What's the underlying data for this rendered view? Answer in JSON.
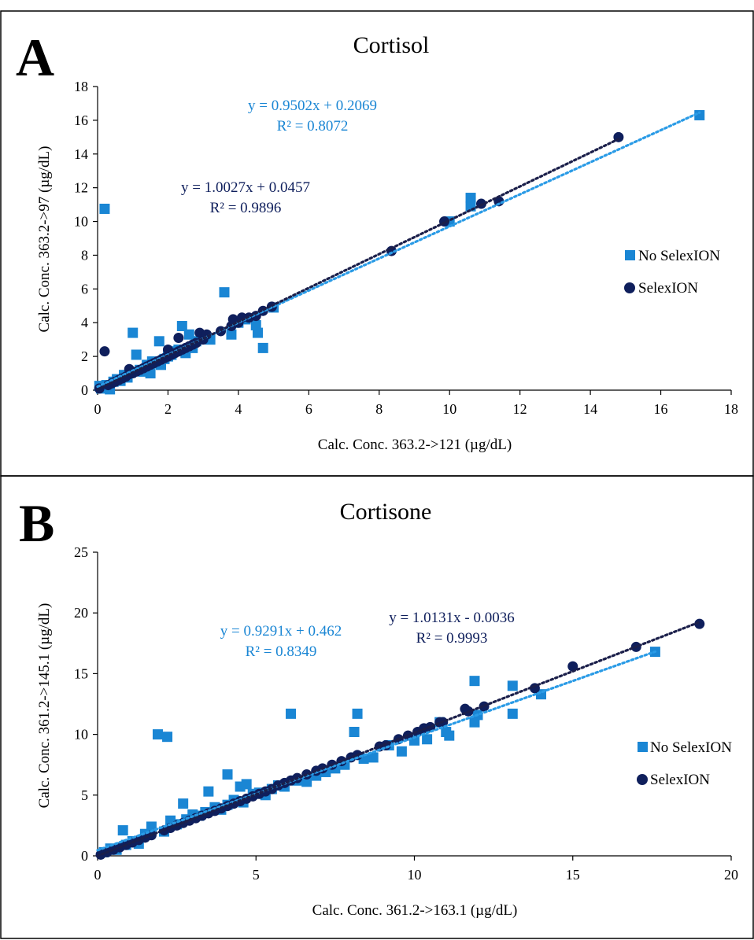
{
  "chart_data": [
    {
      "type": "scatter",
      "panel_label": "A",
      "title": "Cortisol",
      "xlabel": "Calc. Conc. 363.2->121 (µg/dL)",
      "ylabel": "Calc. Conc. 363.2->97 (µg/dL)",
      "xlim": [
        0,
        18
      ],
      "ylim": [
        0,
        18
      ],
      "xticks": [
        0,
        2,
        4,
        6,
        8,
        10,
        12,
        14,
        16,
        18
      ],
      "yticks": [
        0,
        2,
        4,
        6,
        8,
        10,
        12,
        14,
        16,
        18
      ],
      "grid": false,
      "legend_placement": "right",
      "series": [
        {
          "name": "No SelexION",
          "marker": "square",
          "color": "#1a86d4",
          "trendline": {
            "slope": 0.9502,
            "intercept": 0.2069,
            "equation": "y = 0.9502x + 0.2069",
            "r2": "R² = 0.8072"
          },
          "points": [
            [
              0.05,
              0.25
            ],
            [
              0.1,
              0.1
            ],
            [
              0.2,
              10.75
            ],
            [
              0.25,
              0.3
            ],
            [
              0.35,
              0.05
            ],
            [
              0.45,
              0.5
            ],
            [
              0.55,
              0.65
            ],
            [
              0.65,
              0.55
            ],
            [
              0.75,
              0.9
            ],
            [
              0.85,
              0.75
            ],
            [
              0.95,
              1.05
            ],
            [
              1.0,
              3.4
            ],
            [
              1.1,
              2.1
            ],
            [
              1.2,
              1.2
            ],
            [
              1.3,
              1.1
            ],
            [
              1.4,
              1.5
            ],
            [
              1.5,
              1.0
            ],
            [
              1.55,
              1.7
            ],
            [
              1.65,
              1.6
            ],
            [
              1.75,
              2.9
            ],
            [
              1.8,
              1.5
            ],
            [
              1.9,
              1.85
            ],
            [
              2.0,
              2.0
            ],
            [
              2.1,
              2.1
            ],
            [
              2.2,
              2.3
            ],
            [
              2.3,
              2.4
            ],
            [
              2.4,
              3.8
            ],
            [
              2.5,
              2.2
            ],
            [
              2.6,
              3.3
            ],
            [
              2.7,
              2.5
            ],
            [
              2.8,
              2.9
            ],
            [
              3.0,
              3.1
            ],
            [
              3.2,
              3.0
            ],
            [
              3.6,
              5.8
            ],
            [
              3.8,
              3.3
            ],
            [
              4.0,
              4.0
            ],
            [
              4.2,
              4.2
            ],
            [
              4.5,
              3.85
            ],
            [
              4.55,
              3.4
            ],
            [
              4.7,
              2.5
            ],
            [
              5.0,
              4.9
            ],
            [
              10.0,
              10.0
            ],
            [
              10.6,
              10.9
            ],
            [
              10.6,
              11.4
            ],
            [
              17.1,
              16.3
            ]
          ]
        },
        {
          "name": "SelexION",
          "marker": "circle",
          "color": "#0f1f5c",
          "trendline": {
            "slope": 1.0027,
            "intercept": 0.0457,
            "equation": "y = 1.0027x + 0.0457",
            "r2": "R² = 0.9896"
          },
          "points": [
            [
              0.05,
              0.1
            ],
            [
              0.2,
              2.3
            ],
            [
              0.3,
              0.3
            ],
            [
              0.4,
              0.4
            ],
            [
              0.5,
              0.5
            ],
            [
              0.6,
              0.6
            ],
            [
              0.7,
              0.7
            ],
            [
              0.8,
              0.8
            ],
            [
              0.9,
              0.95
            ],
            [
              0.9,
              1.25
            ],
            [
              1.0,
              1.0
            ],
            [
              1.1,
              1.1
            ],
            [
              1.2,
              1.2
            ],
            [
              1.3,
              1.3
            ],
            [
              1.4,
              1.4
            ],
            [
              1.5,
              1.5
            ],
            [
              1.6,
              1.6
            ],
            [
              1.7,
              1.7
            ],
            [
              1.8,
              1.8
            ],
            [
              1.9,
              1.9
            ],
            [
              2.0,
              2.0
            ],
            [
              2.0,
              2.4
            ],
            [
              2.1,
              2.1
            ],
            [
              2.2,
              2.2
            ],
            [
              2.3,
              2.3
            ],
            [
              2.3,
              3.1
            ],
            [
              2.4,
              2.4
            ],
            [
              2.5,
              2.5
            ],
            [
              2.6,
              2.6
            ],
            [
              2.7,
              2.7
            ],
            [
              2.8,
              2.8
            ],
            [
              2.9,
              3.4
            ],
            [
              3.0,
              3.0
            ],
            [
              3.1,
              3.3
            ],
            [
              3.5,
              3.5
            ],
            [
              3.8,
              3.8
            ],
            [
              3.85,
              4.2
            ],
            [
              4.0,
              4.0
            ],
            [
              4.1,
              4.3
            ],
            [
              4.3,
              4.3
            ],
            [
              4.5,
              4.4
            ],
            [
              4.7,
              4.7
            ],
            [
              4.95,
              4.95
            ],
            [
              8.35,
              8.25
            ],
            [
              9.85,
              10.0
            ],
            [
              10.9,
              11.05
            ],
            [
              11.4,
              11.2
            ],
            [
              14.8,
              15.0
            ]
          ]
        }
      ]
    },
    {
      "type": "scatter",
      "panel_label": "B",
      "title": "Cortisone",
      "xlabel": "Calc. Conc. 361.2->163.1 (µg/dL)",
      "ylabel": "Calc. Conc. 361.2->145.1 (µg/dL)",
      "xlim": [
        0,
        20
      ],
      "ylim": [
        0,
        25
      ],
      "xticks": [
        0,
        5,
        10,
        15,
        20
      ],
      "yticks": [
        0,
        5,
        10,
        15,
        20,
        25
      ],
      "grid": false,
      "legend_placement": "right",
      "series": [
        {
          "name": "No SelexION",
          "marker": "square",
          "color": "#1a86d4",
          "trendline": {
            "slope": 0.9291,
            "intercept": 0.462,
            "equation": "y = 0.9291x + 0.462",
            "r2": "R² = 0.8349"
          },
          "points": [
            [
              0.2,
              0.3
            ],
            [
              0.4,
              0.6
            ],
            [
              0.6,
              0.5
            ],
            [
              0.8,
              2.1
            ],
            [
              0.9,
              0.9
            ],
            [
              1.1,
              1.2
            ],
            [
              1.3,
              1.0
            ],
            [
              1.5,
              1.8
            ],
            [
              1.7,
              2.4
            ],
            [
              1.9,
              10.0
            ],
            [
              2.1,
              2.0
            ],
            [
              2.2,
              9.8
            ],
            [
              2.3,
              2.9
            ],
            [
              2.5,
              2.6
            ],
            [
              2.7,
              4.3
            ],
            [
              2.8,
              3.0
            ],
            [
              3.0,
              3.4
            ],
            [
              3.2,
              3.3
            ],
            [
              3.4,
              3.6
            ],
            [
              3.5,
              5.3
            ],
            [
              3.7,
              4.0
            ],
            [
              3.9,
              3.8
            ],
            [
              4.1,
              4.2
            ],
            [
              4.1,
              6.7
            ],
            [
              4.3,
              4.6
            ],
            [
              4.5,
              5.7
            ],
            [
              4.6,
              4.4
            ],
            [
              4.7,
              5.9
            ],
            [
              4.9,
              5.1
            ],
            [
              5.1,
              5.2
            ],
            [
              5.3,
              5.0
            ],
            [
              5.5,
              5.5
            ],
            [
              5.7,
              5.8
            ],
            [
              5.9,
              5.7
            ],
            [
              6.1,
              11.7
            ],
            [
              6.3,
              6.2
            ],
            [
              6.6,
              6.1
            ],
            [
              6.9,
              6.6
            ],
            [
              7.2,
              6.9
            ],
            [
              7.5,
              7.2
            ],
            [
              7.8,
              7.5
            ],
            [
              8.1,
              10.2
            ],
            [
              8.2,
              11.7
            ],
            [
              8.4,
              8.0
            ],
            [
              8.7,
              8.1
            ],
            [
              9.2,
              9.1
            ],
            [
              9.6,
              8.6
            ],
            [
              10.0,
              9.5
            ],
            [
              10.4,
              9.6
            ],
            [
              10.8,
              11.0
            ],
            [
              11.0,
              10.2
            ],
            [
              11.1,
              9.9
            ],
            [
              11.9,
              14.4
            ],
            [
              11.9,
              11.0
            ],
            [
              12.0,
              11.6
            ],
            [
              13.1,
              14.0
            ],
            [
              13.1,
              11.7
            ],
            [
              14.0,
              13.3
            ],
            [
              17.6,
              16.8
            ]
          ]
        },
        {
          "name": "SelexION",
          "marker": "circle",
          "color": "#0f1f5c",
          "trendline": {
            "slope": 1.0131,
            "intercept": -0.0036,
            "equation": "y = 1.0131x - 0.0036",
            "r2": "R² = 0.9993"
          },
          "points": [
            [
              0.1,
              0.1
            ],
            [
              0.3,
              0.3
            ],
            [
              0.5,
              0.5
            ],
            [
              0.7,
              0.7
            ],
            [
              0.9,
              0.9
            ],
            [
              1.1,
              1.1
            ],
            [
              1.3,
              1.3
            ],
            [
              1.5,
              1.5
            ],
            [
              1.7,
              1.7
            ],
            [
              2.1,
              2.1
            ],
            [
              2.3,
              2.3
            ],
            [
              2.5,
              2.5
            ],
            [
              2.7,
              2.7
            ],
            [
              2.9,
              2.9
            ],
            [
              3.1,
              3.1
            ],
            [
              3.3,
              3.3
            ],
            [
              3.5,
              3.5
            ],
            [
              3.7,
              3.7
            ],
            [
              3.9,
              3.9
            ],
            [
              4.1,
              4.1
            ],
            [
              4.3,
              4.3
            ],
            [
              4.5,
              4.5
            ],
            [
              4.7,
              4.7
            ],
            [
              4.9,
              4.9
            ],
            [
              5.1,
              5.1
            ],
            [
              5.3,
              5.3
            ],
            [
              5.5,
              5.5
            ],
            [
              5.7,
              5.8
            ],
            [
              5.9,
              6.0
            ],
            [
              6.1,
              6.2
            ],
            [
              6.3,
              6.4
            ],
            [
              6.6,
              6.7
            ],
            [
              6.9,
              7.0
            ],
            [
              7.1,
              7.2
            ],
            [
              7.4,
              7.5
            ],
            [
              7.7,
              7.8
            ],
            [
              8.0,
              8.1
            ],
            [
              8.2,
              8.3
            ],
            [
              8.9,
              9.0
            ],
            [
              9.1,
              9.1
            ],
            [
              9.5,
              9.6
            ],
            [
              9.8,
              9.9
            ],
            [
              10.1,
              10.2
            ],
            [
              10.3,
              10.5
            ],
            [
              10.5,
              10.6
            ],
            [
              10.8,
              11.0
            ],
            [
              10.9,
              11.0
            ],
            [
              11.6,
              12.1
            ],
            [
              11.7,
              11.9
            ],
            [
              12.2,
              12.3
            ],
            [
              13.8,
              13.8
            ],
            [
              15.0,
              15.6
            ],
            [
              17.0,
              17.2
            ],
            [
              19.0,
              19.1
            ]
          ]
        }
      ]
    }
  ]
}
